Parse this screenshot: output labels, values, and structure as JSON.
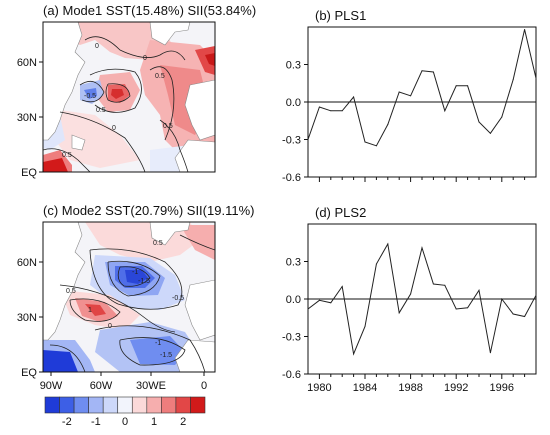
{
  "chart_data": [
    {
      "type": "heatmap",
      "title": "(a) Mode1 SST(15.48%) SII(53.84%)",
      "ylabels": [
        "60N",
        "30N",
        "EQ"
      ],
      "contour_labels": [
        "0.5",
        "0",
        "-0.5",
        "0.5",
        "0",
        "0.5",
        "0",
        "0.5"
      ]
    },
    {
      "type": "line",
      "title": "(b) PLS1",
      "x": [
        1979,
        1980,
        1981,
        1982,
        1983,
        1984,
        1985,
        1986,
        1987,
        1988,
        1989,
        1990,
        1991,
        1992,
        1993,
        1994,
        1995,
        1996,
        1997,
        1998,
        1999
      ],
      "series": [
        {
          "values": [
            -0.3,
            -0.04,
            -0.07,
            -0.07,
            0.04,
            -0.32,
            -0.35,
            -0.18,
            0.08,
            0.05,
            0.25,
            0.24,
            -0.07,
            0.13,
            0.13,
            -0.16,
            -0.25,
            -0.12,
            0.18,
            0.58,
            0.19
          ]
        }
      ],
      "yticks": [
        "0.3",
        "0.0",
        "-0.3",
        "-0.6"
      ],
      "ylim": [
        -0.6,
        0.6
      ],
      "xlim": [
        1979,
        1999
      ],
      "zero_line": true
    },
    {
      "type": "heatmap",
      "title": "(c) Mode2 SST(20.79%) SII(19.11%)",
      "ylabels": [
        "60N",
        "30N",
        "EQ"
      ],
      "xlabels": [
        "90W",
        "60W",
        "30WE",
        "0"
      ],
      "contour_labels": [
        "0.5",
        "-1",
        "-1.5",
        "1",
        "0.5",
        "0",
        "-0.5",
        "-1",
        "-1.5"
      ]
    },
    {
      "type": "line",
      "title": "(d) PLS2",
      "x": [
        1979,
        1980,
        1981,
        1982,
        1983,
        1984,
        1985,
        1986,
        1987,
        1988,
        1989,
        1990,
        1991,
        1992,
        1993,
        1994,
        1995,
        1996,
        1997,
        1998,
        1999
      ],
      "series": [
        {
          "values": [
            -0.08,
            -0.01,
            -0.03,
            0.1,
            -0.44,
            -0.22,
            0.28,
            0.44,
            -0.11,
            0.04,
            0.41,
            0.12,
            0.11,
            -0.08,
            -0.07,
            0.07,
            -0.43,
            0.0,
            -0.12,
            -0.14,
            0.03
          ]
        }
      ],
      "yticks": [
        "0.3",
        "0.0",
        "-0.3",
        "-0.6"
      ],
      "ylim": [
        -0.6,
        0.6
      ],
      "xlim": [
        1979,
        1999
      ],
      "xticks": [
        1980,
        1984,
        1988,
        1992,
        1996
      ],
      "zero_line": true
    },
    {
      "type": "heatmap",
      "title": "",
      "colorbar_labels": [
        "-2",
        "-1",
        "0",
        "1",
        "2"
      ],
      "colorbar_colors": [
        "#1f3bd8",
        "#3d5fe6",
        "#6f8df0",
        "#a3b6f5",
        "#cdd8fa",
        "#f2f4fc",
        "#fbd9d9",
        "#f6aeae",
        "#ee7d7d",
        "#e24747",
        "#d21a1a"
      ]
    }
  ]
}
